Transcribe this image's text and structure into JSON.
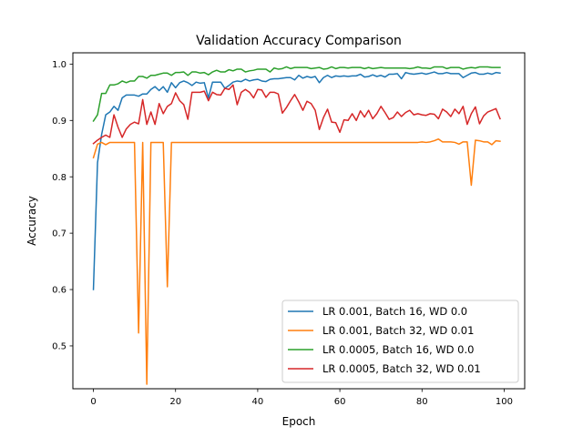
{
  "chart_data": {
    "type": "line",
    "title": "Validation Accuracy Comparison",
    "xlabel": "Epoch",
    "ylabel": "Accuracy",
    "xlim": [
      -5,
      105
    ],
    "ylim": [
      0.424,
      1.02
    ],
    "xticks": [
      0,
      20,
      40,
      60,
      80,
      100
    ],
    "xtick_labels": [
      "0",
      "20",
      "40",
      "60",
      "80",
      "100"
    ],
    "yticks": [
      0.5,
      0.6,
      0.7,
      0.8,
      0.9,
      1.0
    ],
    "ytick_labels": [
      "0.5",
      "0.6",
      "0.7",
      "0.8",
      "0.9",
      "1.0"
    ],
    "grid": false,
    "legend_position": "lower-right",
    "x": [
      0,
      1,
      2,
      3,
      4,
      5,
      6,
      7,
      8,
      9,
      10,
      11,
      12,
      13,
      14,
      15,
      16,
      17,
      18,
      19,
      20,
      21,
      22,
      23,
      24,
      25,
      26,
      27,
      28,
      29,
      30,
      31,
      32,
      33,
      34,
      35,
      36,
      37,
      38,
      39,
      40,
      41,
      42,
      43,
      44,
      45,
      46,
      47,
      48,
      49,
      50,
      51,
      52,
      53,
      54,
      55,
      56,
      57,
      58,
      59,
      60,
      61,
      62,
      63,
      64,
      65,
      66,
      67,
      68,
      69,
      70,
      71,
      72,
      73,
      74,
      75,
      76,
      77,
      78,
      79,
      80,
      81,
      82,
      83,
      84,
      85,
      86,
      87,
      88,
      89,
      90,
      91,
      92,
      93,
      94,
      95,
      96,
      97,
      98,
      99
    ],
    "series": [
      {
        "name": "LR 0.001, Batch 16, WD 0.0",
        "color": "#1f77b4",
        "values": [
          0.6,
          0.825,
          0.875,
          0.91,
          0.915,
          0.925,
          0.918,
          0.94,
          0.945,
          0.945,
          0.945,
          0.943,
          0.947,
          0.947,
          0.955,
          0.96,
          0.953,
          0.96,
          0.95,
          0.967,
          0.958,
          0.967,
          0.97,
          0.967,
          0.962,
          0.968,
          0.966,
          0.967,
          0.94,
          0.968,
          0.968,
          0.968,
          0.957,
          0.962,
          0.968,
          0.97,
          0.969,
          0.973,
          0.97,
          0.972,
          0.973,
          0.97,
          0.969,
          0.973,
          0.974,
          0.974,
          0.975,
          0.976,
          0.976,
          0.972,
          0.98,
          0.975,
          0.978,
          0.976,
          0.978,
          0.967,
          0.976,
          0.98,
          0.976,
          0.979,
          0.978,
          0.979,
          0.978,
          0.979,
          0.979,
          0.982,
          0.977,
          0.978,
          0.981,
          0.978,
          0.98,
          0.977,
          0.982,
          0.982,
          0.983,
          0.974,
          0.985,
          0.983,
          0.982,
          0.983,
          0.984,
          0.982,
          0.984,
          0.986,
          0.983,
          0.983,
          0.985,
          0.983,
          0.983,
          0.983,
          0.976,
          0.98,
          0.984,
          0.985,
          0.982,
          0.982,
          0.984,
          0.982,
          0.985,
          0.984
        ]
      },
      {
        "name": "LR 0.001, Batch 32, WD 0.01",
        "color": "#ff7f0e",
        "values": [
          0.834,
          0.858,
          0.861,
          0.857,
          0.861,
          0.861,
          0.861,
          0.861,
          0.861,
          0.861,
          0.861,
          0.523,
          0.861,
          0.432,
          0.861,
          0.861,
          0.861,
          0.861,
          0.605,
          0.861,
          0.861,
          0.861,
          0.861,
          0.861,
          0.861,
          0.861,
          0.861,
          0.861,
          0.861,
          0.861,
          0.861,
          0.861,
          0.861,
          0.861,
          0.861,
          0.861,
          0.861,
          0.861,
          0.861,
          0.861,
          0.861,
          0.861,
          0.861,
          0.861,
          0.861,
          0.861,
          0.861,
          0.861,
          0.861,
          0.861,
          0.861,
          0.861,
          0.861,
          0.861,
          0.861,
          0.861,
          0.861,
          0.861,
          0.861,
          0.861,
          0.861,
          0.861,
          0.861,
          0.861,
          0.861,
          0.861,
          0.861,
          0.861,
          0.861,
          0.861,
          0.861,
          0.861,
          0.861,
          0.861,
          0.861,
          0.861,
          0.861,
          0.861,
          0.861,
          0.861,
          0.862,
          0.861,
          0.862,
          0.864,
          0.867,
          0.862,
          0.862,
          0.862,
          0.861,
          0.858,
          0.862,
          0.862,
          0.785,
          0.865,
          0.864,
          0.862,
          0.862,
          0.857,
          0.864,
          0.863
        ]
      },
      {
        "name": "LR 0.0005, Batch 16, WD 0.0",
        "color": "#2ca02c",
        "values": [
          0.899,
          0.91,
          0.948,
          0.948,
          0.963,
          0.963,
          0.965,
          0.97,
          0.967,
          0.97,
          0.97,
          0.978,
          0.978,
          0.975,
          0.98,
          0.98,
          0.982,
          0.984,
          0.984,
          0.98,
          0.985,
          0.985,
          0.986,
          0.98,
          0.986,
          0.986,
          0.984,
          0.985,
          0.981,
          0.986,
          0.989,
          0.986,
          0.986,
          0.99,
          0.988,
          0.991,
          0.991,
          0.986,
          0.988,
          0.989,
          0.991,
          0.991,
          0.991,
          0.986,
          0.993,
          0.991,
          0.992,
          0.995,
          0.992,
          0.994,
          0.994,
          0.994,
          0.994,
          0.992,
          0.993,
          0.994,
          0.991,
          0.992,
          0.995,
          0.992,
          0.994,
          0.994,
          0.993,
          0.994,
          0.994,
          0.994,
          0.992,
          0.994,
          0.992,
          0.993,
          0.994,
          0.993,
          0.993,
          0.993,
          0.993,
          0.993,
          0.993,
          0.992,
          0.993,
          0.995,
          0.993,
          0.993,
          0.992,
          0.995,
          0.995,
          0.995,
          0.992,
          0.994,
          0.994,
          0.994,
          0.991,
          0.993,
          0.994,
          0.993,
          0.995,
          0.995,
          0.995,
          0.994,
          0.994,
          0.994
        ]
      },
      {
        "name": "LR 0.0005, Batch 32, WD 0.01",
        "color": "#d62728",
        "values": [
          0.859,
          0.865,
          0.87,
          0.874,
          0.87,
          0.91,
          0.888,
          0.87,
          0.885,
          0.893,
          0.897,
          0.894,
          0.937,
          0.893,
          0.915,
          0.893,
          0.93,
          0.912,
          0.925,
          0.93,
          0.949,
          0.935,
          0.928,
          0.902,
          0.95,
          0.95,
          0.95,
          0.952,
          0.935,
          0.95,
          0.946,
          0.945,
          0.957,
          0.955,
          0.963,
          0.928,
          0.95,
          0.955,
          0.95,
          0.94,
          0.955,
          0.954,
          0.941,
          0.95,
          0.95,
          0.947,
          0.913,
          0.923,
          0.935,
          0.946,
          0.933,
          0.918,
          0.934,
          0.93,
          0.918,
          0.884,
          0.905,
          0.92,
          0.897,
          0.896,
          0.879,
          0.901,
          0.9,
          0.912,
          0.9,
          0.917,
          0.906,
          0.918,
          0.903,
          0.912,
          0.925,
          0.914,
          0.902,
          0.905,
          0.915,
          0.907,
          0.914,
          0.918,
          0.91,
          0.912,
          0.91,
          0.909,
          0.912,
          0.911,
          0.903,
          0.92,
          0.915,
          0.907,
          0.92,
          0.912,
          0.925,
          0.893,
          0.912,
          0.924,
          0.894,
          0.908,
          0.915,
          0.918,
          0.921,
          0.903
        ]
      }
    ]
  }
}
